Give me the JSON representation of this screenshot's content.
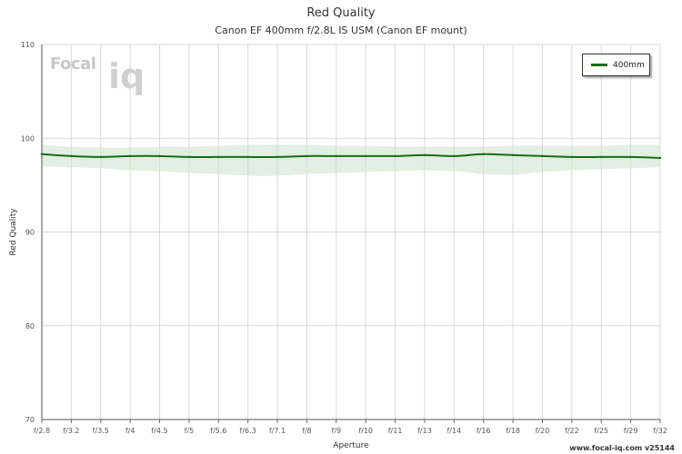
{
  "colors": {
    "series": "#1a6b1a",
    "band": "#cfe5cf",
    "grid": "#d9d9d9",
    "watermark": "#cccccc"
  },
  "watermark": {
    "focal_text": "Focal",
    "iq_text": "iq"
  },
  "footer": {
    "url_text": "www.focal-iq.com  v25144"
  },
  "chart_data": {
    "type": "line",
    "title": "Red Quality",
    "subtitle": "Canon EF 400mm f/2.8L IS USM (Canon EF mount)",
    "xlabel": "Aperture",
    "ylabel": "Red Quality",
    "categories": [
      "f/2.8",
      "f/3.2",
      "f/3.5",
      "f/4",
      "f/4.5",
      "f/5",
      "f/5.6",
      "f/6.3",
      "f/7.1",
      "f/8",
      "f/9",
      "f/10",
      "f/11",
      "f/13",
      "f/14",
      "f/16",
      "f/18",
      "f/20",
      "f/22",
      "f/25",
      "f/29",
      "f/32"
    ],
    "ylim": [
      70,
      110
    ],
    "yticks": [
      70,
      80,
      90,
      100,
      110
    ],
    "grid": true,
    "legend_position": "top-right",
    "series": [
      {
        "name": "400mm",
        "values": [
          98.3,
          98.1,
          98.0,
          98.1,
          98.1,
          98.0,
          98.0,
          98.0,
          98.0,
          98.1,
          98.1,
          98.1,
          98.1,
          98.2,
          98.1,
          98.3,
          98.2,
          98.1,
          98.0,
          98.0,
          98.0,
          97.9
        ],
        "upper": [
          99.3,
          99.1,
          99.0,
          99.0,
          99.1,
          99.1,
          99.2,
          99.3,
          99.3,
          99.3,
          99.2,
          99.2,
          99.1,
          99.1,
          99.1,
          99.1,
          99.2,
          99.2,
          99.2,
          99.2,
          99.3,
          99.3
        ],
        "lower": [
          97.0,
          96.9,
          96.8,
          96.6,
          96.5,
          96.3,
          96.2,
          96.0,
          96.0,
          96.2,
          96.3,
          96.4,
          96.5,
          96.6,
          96.5,
          96.2,
          96.1,
          96.4,
          96.6,
          96.7,
          96.8,
          96.9
        ]
      }
    ]
  }
}
